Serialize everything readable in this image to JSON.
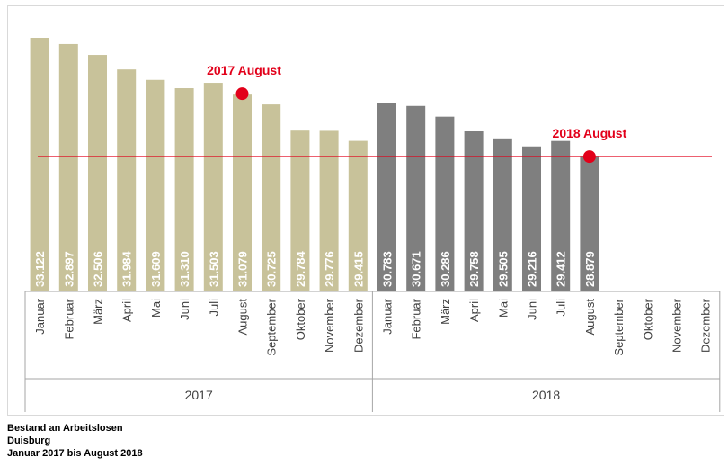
{
  "chart_data": {
    "type": "bar",
    "ylim": [
      0,
      34000
    ],
    "series": [
      {
        "group": "2017",
        "color": "#c8c29a",
        "categories": [
          "Januar",
          "Februar",
          "März",
          "April",
          "Mai",
          "Juni",
          "Juli",
          "August",
          "September",
          "Oktober",
          "November",
          "Dezember"
        ],
        "values": [
          33122,
          32897,
          32506,
          31984,
          31609,
          31310,
          31503,
          31079,
          30725,
          29784,
          29776,
          29415
        ],
        "labels": [
          "33.122",
          "32.897",
          "32.506",
          "31.984",
          "31.609",
          "31.310",
          "31.503",
          "31.079",
          "30.725",
          "29.784",
          "29.776",
          "29.415"
        ]
      },
      {
        "group": "2018",
        "color": "#7f7f7f",
        "categories": [
          "Januar",
          "Februar",
          "März",
          "April",
          "Mai",
          "Juni",
          "Juli",
          "August",
          "September",
          "Oktober",
          "November",
          "Dezember"
        ],
        "values": [
          30783,
          30671,
          30286,
          29758,
          29505,
          29216,
          29412,
          28879,
          null,
          null,
          null,
          null
        ],
        "labels": [
          "30.783",
          "30.671",
          "30.286",
          "29.758",
          "29.505",
          "29.216",
          "29.412",
          "28.879",
          "",
          "",
          "",
          ""
        ]
      }
    ],
    "reference_line": {
      "value": 28879,
      "color": "#e2001a"
    },
    "annotations": [
      {
        "text": "2017 August",
        "group_index": 0,
        "category_index": 7,
        "value": 31079
      },
      {
        "text": "2018 August",
        "group_index": 1,
        "category_index": 7,
        "value": 28879
      }
    ]
  },
  "caption": {
    "line1": "Bestand an Arbeitslosen",
    "line2": "Duisburg",
    "line3": "Januar 2017 bis August 2018"
  }
}
